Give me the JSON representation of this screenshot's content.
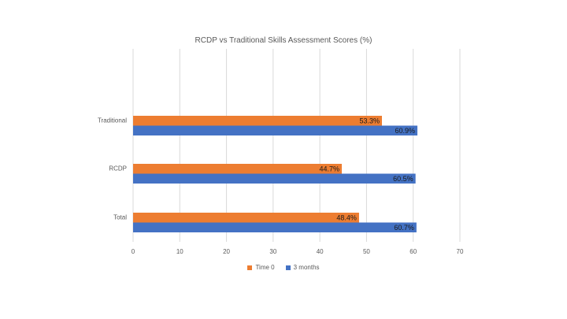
{
  "chart_data": {
    "type": "bar",
    "orientation": "horizontal",
    "title": "RCDP vs Traditional Skills Assessment Scores (%)",
    "categories": [
      "Traditional",
      "RCDP",
      "Total"
    ],
    "series": [
      {
        "name": "Time 0",
        "color": "#ED7D31",
        "values": [
          53.3,
          44.7,
          48.4
        ],
        "labels": [
          "53.3%",
          "44.7%",
          "48.4%"
        ]
      },
      {
        "name": "3 months",
        "color": "#4472C4",
        "values": [
          60.9,
          60.5,
          60.7
        ],
        "labels": [
          "60.9%",
          "60.5%",
          "60.7%"
        ]
      }
    ],
    "xticks": [
      "0",
      "10",
      "20",
      "30",
      "40",
      "50",
      "60",
      "70"
    ],
    "xlim": [
      0,
      70
    ],
    "grid": true,
    "legend_position": "bottom"
  }
}
